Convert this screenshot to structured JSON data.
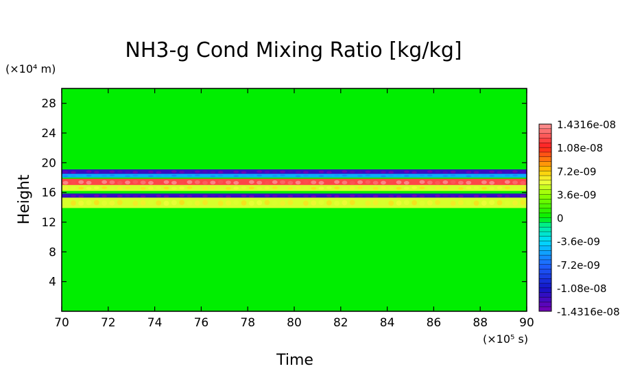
{
  "chart_data": {
    "type": "heatmap",
    "title": "NH3-g Cond Mixing Ratio [kg/kg]",
    "xlabel": "Time",
    "ylabel": "Height",
    "x_unit": "(×10⁵ s)",
    "y_unit": "(×10⁴ m)",
    "xlim": [
      70,
      90
    ],
    "ylim": [
      0,
      30
    ],
    "x_ticks": [
      "70",
      "72",
      "74",
      "76",
      "78",
      "80",
      "82",
      "84",
      "86",
      "88",
      "90"
    ],
    "y_ticks": [
      "4",
      "8",
      "12",
      "16",
      "20",
      "24",
      "28"
    ],
    "background_value": 0,
    "bands": [
      {
        "y_center": 18.75,
        "half_width": 0.35,
        "value": -1.2e-08
      },
      {
        "y_center": 18.25,
        "half_width": 0.25,
        "value": -5e-09
      },
      {
        "y_center": 17.35,
        "half_width": 0.5,
        "value": 1.2e-08
      },
      {
        "y_center": 16.6,
        "half_width": 0.4,
        "value": 5e-09
      },
      {
        "y_center": 15.5,
        "half_width": 0.35,
        "value": -1.2e-08
      },
      {
        "y_center": 14.6,
        "half_width": 0.7,
        "value": 5e-09
      }
    ],
    "colorbar": {
      "min": -1.4316e-08,
      "max": 1.4316e-08,
      "labels": [
        "1.4316e-08",
        "1.08e-08",
        "7.2e-09",
        "3.6e-09",
        "0",
        "-3.6e-09",
        "-7.2e-09",
        "-1.08e-08",
        "-1.4316e-08"
      ]
    },
    "colors": {
      "background": "#00ee00",
      "strong_positive": "#ff2020",
      "weak_positive": "#f0ff40",
      "strong_negative": "#2030ff",
      "weak_negative": "#40e0ff"
    },
    "grid": false,
    "legend": "right"
  }
}
